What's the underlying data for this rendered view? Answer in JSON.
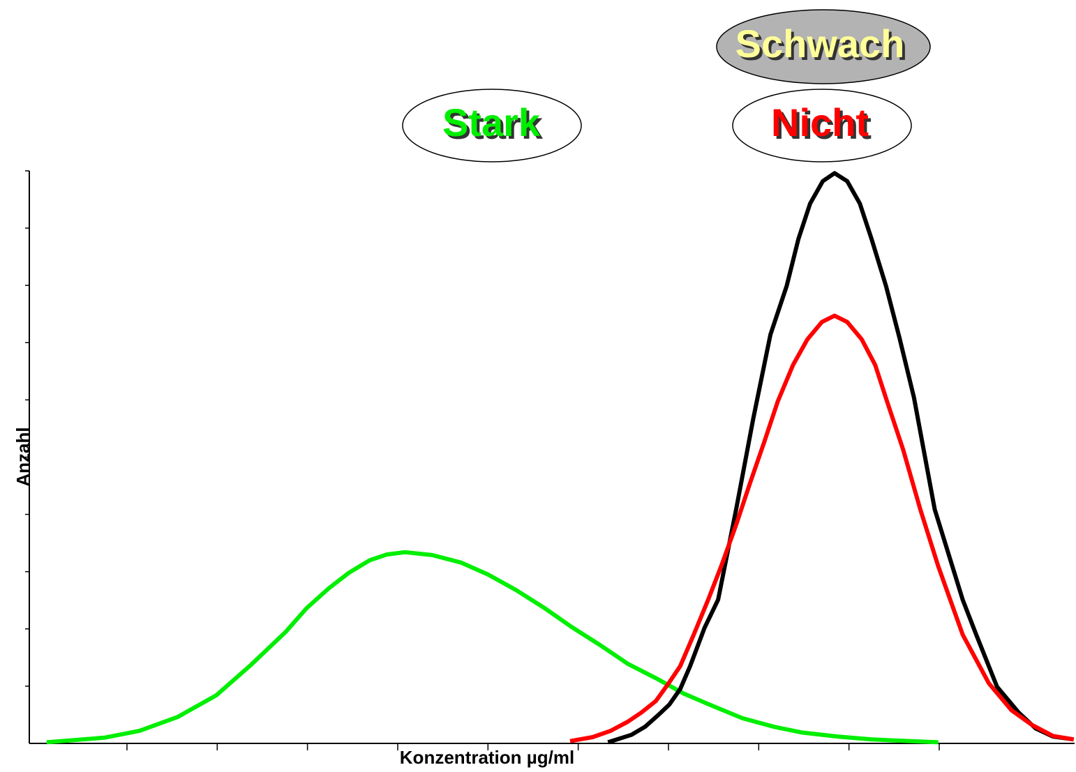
{
  "chart_data": {
    "type": "line",
    "xlabel": "Konzentration µg/ml",
    "ylabel": "Anzahl",
    "annotations": [
      {
        "text": "Stark",
        "color": "#00ee00"
      },
      {
        "text": "Nicht",
        "color": "#ff0000"
      },
      {
        "text": "Schwach",
        "color": "#ffff99"
      }
    ],
    "xlim": [
      0,
      11.5
    ],
    "ylim": [
      0,
      10
    ],
    "xticks": [
      1,
      2,
      3,
      4,
      5,
      6,
      7,
      8,
      9,
      10
    ],
    "yticks": [
      1,
      2,
      3,
      4,
      5,
      6,
      7,
      8,
      9,
      10
    ],
    "series": [
      {
        "color": "#00ee00",
        "x": [
          0.11,
          0.75,
          1.14,
          1.56,
          1.99,
          2.38,
          2.76,
          2.99,
          3.23,
          3.46,
          3.69,
          3.88,
          4.08,
          4.38,
          4.7,
          5.0,
          5.31,
          5.62,
          5.93,
          6.24,
          6.55,
          6.86,
          7.17,
          7.48,
          7.82,
          8.17,
          8.48,
          8.87,
          9.25,
          9.99
        ],
        "values": [
          0.02,
          0.1,
          0.22,
          0.46,
          0.84,
          1.38,
          1.95,
          2.36,
          2.7,
          2.98,
          3.2,
          3.3,
          3.34,
          3.29,
          3.16,
          2.95,
          2.68,
          2.37,
          2.03,
          1.72,
          1.39,
          1.14,
          0.87,
          0.66,
          0.44,
          0.29,
          0.19,
          0.12,
          0.07,
          0.02
        ]
      },
      {
        "color": "#000000",
        "x": [
          6.33,
          6.59,
          6.74,
          6.89,
          7.01,
          7.13,
          7.24,
          7.4,
          7.55,
          7.75,
          7.94,
          8.13,
          8.31,
          8.44,
          8.57,
          8.71,
          8.84,
          8.98,
          9.12,
          9.25,
          9.41,
          9.56,
          9.72,
          9.95,
          10.26,
          10.41,
          10.64,
          10.88,
          11.07,
          11.26,
          11.49
        ],
        "values": [
          0.02,
          0.15,
          0.29,
          0.5,
          0.68,
          0.95,
          1.35,
          2.02,
          2.51,
          4.09,
          5.68,
          7.14,
          7.99,
          8.81,
          9.43,
          9.82,
          9.96,
          9.82,
          9.43,
          8.81,
          7.99,
          7.08,
          6.04,
          4.09,
          2.51,
          1.9,
          0.99,
          0.54,
          0.26,
          0.12,
          0.07
        ]
      },
      {
        "color": "#ff0000",
        "x": [
          5.91,
          6.16,
          6.36,
          6.55,
          6.7,
          6.86,
          7.01,
          7.13,
          7.28,
          7.44,
          7.59,
          7.75,
          7.9,
          8.06,
          8.21,
          8.38,
          8.54,
          8.7,
          8.84,
          8.98,
          9.14,
          9.29,
          9.42,
          9.6,
          9.79,
          9.99,
          10.26,
          10.55,
          10.8,
          11.03,
          11.26,
          11.49
        ],
        "values": [
          0.04,
          0.11,
          0.22,
          0.38,
          0.54,
          0.74,
          1.07,
          1.35,
          1.9,
          2.51,
          3.12,
          3.82,
          4.53,
          5.26,
          5.97,
          6.61,
          7.06,
          7.36,
          7.47,
          7.36,
          7.06,
          6.61,
          5.98,
          5.13,
          4.09,
          3.09,
          1.9,
          1.05,
          0.58,
          0.32,
          0.13,
          0.07
        ]
      }
    ]
  }
}
